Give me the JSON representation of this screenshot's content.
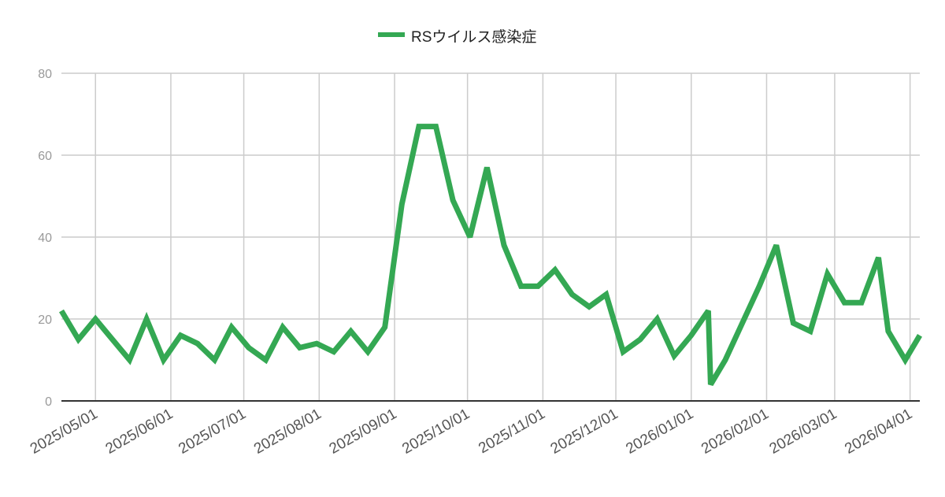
{
  "chart_data": {
    "type": "line",
    "title": "",
    "xlabel": "",
    "ylabel": "",
    "ylim": [
      0,
      80
    ],
    "yticks": [
      "0",
      "20",
      "40",
      "60",
      "80"
    ],
    "xlim": [
      "2025-04-17",
      "2026-04-05"
    ],
    "xticks": [
      "2025/05/01",
      "2025/06/01",
      "2025/07/01",
      "2025/08/01",
      "2025/09/01",
      "2025/10/01",
      "2025/11/01",
      "2025/12/01",
      "2026/01/01",
      "2026/02/01",
      "2026/03/01",
      "2026/04/01"
    ],
    "grid": true,
    "legend": "top",
    "series": [
      {
        "name": "RSウイルス感染症",
        "color": "#34a853",
        "x": [
          "2025-04-17",
          "2025-04-24",
          "2025-05-01",
          "2025-05-08",
          "2025-05-15",
          "2025-05-22",
          "2025-05-29",
          "2025-06-05",
          "2025-06-12",
          "2025-06-19",
          "2025-06-26",
          "2025-07-03",
          "2025-07-10",
          "2025-07-17",
          "2025-07-24",
          "2025-07-31",
          "2025-08-07",
          "2025-08-14",
          "2025-08-21",
          "2025-08-28",
          "2025-09-04",
          "2025-09-11",
          "2025-09-18",
          "2025-09-25",
          "2025-10-02",
          "2025-10-09",
          "2025-10-16",
          "2025-10-23",
          "2025-10-30",
          "2025-11-06",
          "2025-11-13",
          "2025-11-20",
          "2025-11-27",
          "2025-12-04",
          "2025-12-11",
          "2025-12-18",
          "2025-12-25",
          "2026-01-01",
          "2026-01-08",
          "2026-01-09",
          "2026-01-15",
          "2026-01-22",
          "2026-01-29",
          "2026-02-05",
          "2026-02-12",
          "2026-02-19",
          "2026-02-26",
          "2026-03-05",
          "2026-03-12",
          "2026-03-19",
          "2026-03-23",
          "2026-03-30",
          "2026-04-05"
        ],
        "values": [
          22,
          15,
          20,
          15,
          10,
          20,
          10,
          16,
          14,
          10,
          18,
          13,
          10,
          18,
          13,
          14,
          12,
          17,
          12,
          18,
          48,
          67,
          67,
          49,
          40,
          57,
          38,
          28,
          28,
          32,
          26,
          23,
          26,
          12,
          15,
          20,
          11,
          16,
          22,
          4,
          10,
          19,
          28,
          38,
          19,
          17,
          31,
          24,
          24,
          35,
          17,
          10,
          16
        ]
      }
    ]
  }
}
